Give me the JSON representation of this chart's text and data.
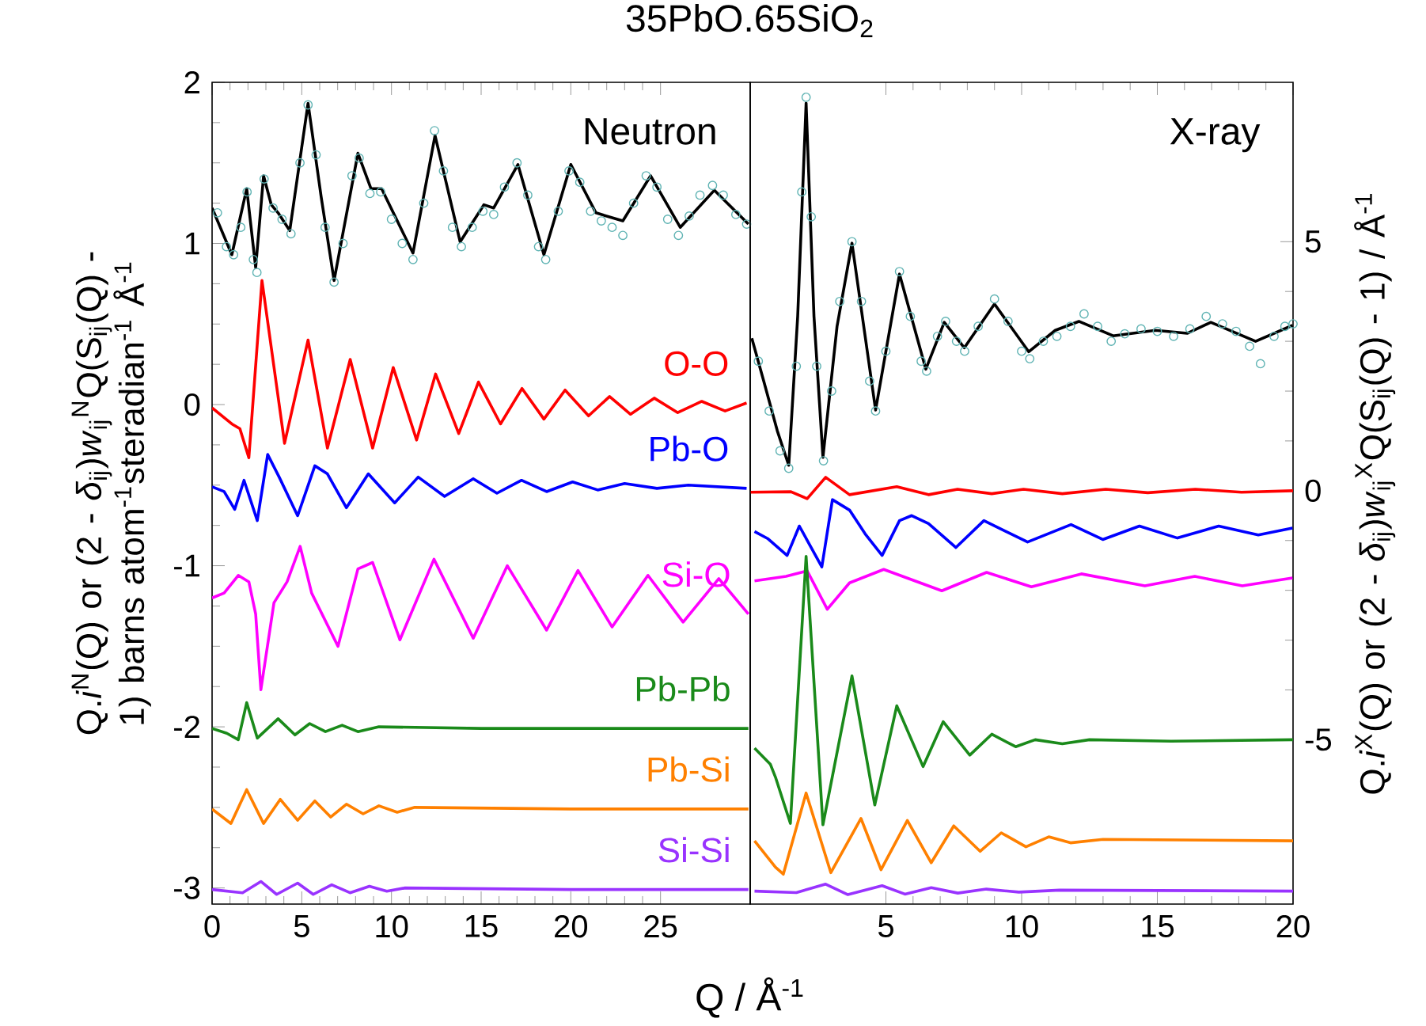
{
  "chart_data": [
    {
      "type": "line",
      "title": "35PbO.65SiO$_{2}$",
      "xlabel": "Q / Å$^{-1}$",
      "ylabel": "Q.*i*$^{N}$(Q) or (2 - *δ*$_{ij}$)*w*$_{ij}$$^{N}$Q(S$_{ij}$(Q) - 1) barns atom$^{-1}$steradian$^{-1}$ Å$^{-1}$",
      "annotations": [
        "Neutron"
      ],
      "xlim": [
        0,
        30
      ],
      "ylim": [
        -3.1,
        2
      ],
      "xticks": [
        0,
        5,
        10,
        15,
        20,
        25
      ],
      "yticks": [
        -3,
        -2,
        -1,
        0,
        1,
        2
      ],
      "series": [
        {
          "type": "scatter",
          "marker": "circle",
          "color": "#5fb3b3",
          "x": [
            0.3,
            0.8,
            1.2,
            1.6,
            1.95,
            2.3,
            2.5,
            2.9,
            3.4,
            3.9,
            4.4,
            4.9,
            5.35,
            5.8,
            6.3,
            6.8,
            7.3,
            7.8,
            8.2,
            8.8,
            9.4,
            10.0,
            10.6,
            11.2,
            11.8,
            12.4,
            12.9,
            13.4,
            13.9,
            14.5,
            15.1,
            15.7,
            16.3,
            17.0,
            17.6,
            18.2,
            18.6,
            19.3,
            19.9,
            20.5,
            21.1,
            21.7,
            22.3,
            22.9,
            23.5,
            24.2,
            24.8,
            25.4,
            26.0,
            26.6,
            27.2,
            27.9,
            28.5,
            29.2,
            29.8
          ],
          "values": [
            1.19,
            0.98,
            0.93,
            1.1,
            1.32,
            0.9,
            0.82,
            1.4,
            1.22,
            1.15,
            1.06,
            1.5,
            1.86,
            1.55,
            1.1,
            0.76,
            1.0,
            1.42,
            1.53,
            1.31,
            1.32,
            1.15,
            1.0,
            0.9,
            1.25,
            1.7,
            1.45,
            1.1,
            0.98,
            1.1,
            1.2,
            1.18,
            1.35,
            1.5,
            1.3,
            0.98,
            0.9,
            1.2,
            1.45,
            1.38,
            1.2,
            1.14,
            1.1,
            1.05,
            1.25,
            1.42,
            1.35,
            1.15,
            1.05,
            1.17,
            1.3,
            1.36,
            1.3,
            1.18,
            1.12
          ]
        },
        {
          "type": "line",
          "color": "#000000",
          "x": [
            0,
            1.1,
            1.93,
            2.43,
            2.87,
            3.3,
            3.68,
            4.33,
            5.35,
            6.08,
            6.8,
            8.13,
            8.86,
            9.45,
            11.2,
            12.43,
            13.83,
            15.15,
            15.7,
            17.05,
            18.5,
            20.0,
            21.4,
            22.9,
            24.45,
            26.1,
            28.0,
            29.9
          ],
          "values": [
            1.22,
            0.93,
            1.34,
            0.85,
            1.42,
            1.24,
            1.19,
            1.08,
            1.87,
            1.29,
            0.77,
            1.56,
            1.34,
            1.34,
            0.94,
            1.67,
            1.01,
            1.24,
            1.22,
            1.49,
            0.93,
            1.49,
            1.19,
            1.14,
            1.42,
            1.1,
            1.33,
            1.12
          ]
        },
        {
          "type": "line",
          "name": "O-O",
          "color": "#ff0000",
          "x": [
            0,
            1.1,
            1.55,
            2.05,
            2.78,
            4.04,
            5.35,
            6.43,
            7.7,
            8.95,
            10.1,
            11.4,
            12.46,
            13.75,
            14.85,
            16.08,
            17.28,
            18.5,
            19.68,
            20.99,
            22.16,
            23.33,
            24.65,
            25.96,
            27.3,
            28.6,
            29.8
          ],
          "values": [
            -0.02,
            -0.12,
            -0.15,
            -0.33,
            0.77,
            -0.24,
            0.4,
            -0.27,
            0.28,
            -0.27,
            0.23,
            -0.22,
            0.19,
            -0.18,
            0.14,
            -0.12,
            0.1,
            -0.09,
            0.09,
            -0.07,
            0.05,
            -0.06,
            0.04,
            -0.05,
            0.02,
            -0.04,
            0.01
          ]
        },
        {
          "type": "line",
          "name": "Pb-O",
          "color": "#0000ff",
          "x": [
            0,
            0.67,
            1.26,
            1.78,
            2.52,
            3.1,
            3.74,
            4.77,
            5.73,
            6.43,
            7.49,
            8.71,
            10.18,
            11.49,
            12.96,
            14.56,
            15.88,
            17.25,
            18.65,
            20.1,
            21.5,
            23.0,
            24.8,
            26.55,
            29.8
          ],
          "values": [
            -0.51,
            -0.54,
            -0.65,
            -0.47,
            -0.72,
            -0.31,
            -0.45,
            -0.69,
            -0.38,
            -0.43,
            -0.64,
            -0.43,
            -0.61,
            -0.45,
            -0.57,
            -0.46,
            -0.55,
            -0.47,
            -0.54,
            -0.48,
            -0.53,
            -0.49,
            -0.52,
            -0.5,
            -0.52
          ]
        },
        {
          "type": "line",
          "name": "Si-O",
          "color": "#ff00ff",
          "x": [
            0,
            0.67,
            1.46,
            2.05,
            2.43,
            2.72,
            3.45,
            4.18,
            4.91,
            5.55,
            7.02,
            8.13,
            8.95,
            10.47,
            12.37,
            14.56,
            16.46,
            18.65,
            20.4,
            22.3,
            24.3,
            26.26,
            28.25,
            29.9
          ],
          "values": [
            -1.2,
            -1.17,
            -1.06,
            -1.1,
            -1.3,
            -1.77,
            -1.23,
            -1.1,
            -0.88,
            -1.17,
            -1.5,
            -1.02,
            -0.98,
            -1.46,
            -0.96,
            -1.45,
            -1.0,
            -1.4,
            -1.03,
            -1.38,
            -1.06,
            -1.35,
            -1.08,
            -1.3
          ]
        },
        {
          "type": "line",
          "name": "Pb-Pb",
          "color": "#1a8a1a",
          "x": [
            0,
            0.82,
            1.46,
            1.93,
            2.52,
            3.68,
            4.62,
            5.44,
            6.32,
            7.25,
            8.13,
            9.3,
            15,
            29.9
          ],
          "values": [
            -2.01,
            -2.04,
            -2.08,
            -1.85,
            -2.07,
            -1.95,
            -2.05,
            -1.98,
            -2.03,
            -1.99,
            -2.03,
            -2.0,
            -2.01,
            -2.01
          ]
        },
        {
          "type": "line",
          "name": "Pb-Si",
          "color": "#ff8000",
          "x": [
            0,
            1.05,
            1.93,
            2.87,
            3.8,
            4.77,
            5.73,
            6.61,
            7.49,
            8.42,
            9.3,
            10.32,
            11.3,
            20,
            29.9
          ],
          "values": [
            -2.51,
            -2.6,
            -2.39,
            -2.6,
            -2.45,
            -2.58,
            -2.46,
            -2.56,
            -2.48,
            -2.54,
            -2.49,
            -2.53,
            -2.5,
            -2.51,
            -2.51
          ]
        },
        {
          "type": "line",
          "name": "Si-Si",
          "color": "#9933ff",
          "x": [
            0,
            1.7,
            2.72,
            3.6,
            4.77,
            5.64,
            6.67,
            7.69,
            8.77,
            9.74,
            10.76,
            20,
            29.9
          ],
          "values": [
            -3.01,
            -3.03,
            -2.96,
            -3.04,
            -2.97,
            -3.04,
            -2.98,
            -3.03,
            -2.99,
            -3.02,
            -3.0,
            -3.01,
            -3.01
          ]
        }
      ]
    },
    {
      "type": "line",
      "ylabel": "Q.*i*$^{X}$(Q) or (2 - *δ*$_{ij}$)*w*$_{ij}$$^{X}$Q(S$_{ij}$(Q) - 1) / Å$^{-1}$",
      "annotations": [
        "X-ray"
      ],
      "xlim": [
        0,
        20
      ],
      "ylim": [
        -8.3,
        8.2
      ],
      "xticks": [
        5,
        10,
        15,
        20
      ],
      "yticks": [
        -5,
        0,
        5
      ],
      "series": [
        {
          "type": "scatter",
          "marker": "circle",
          "color": "#5fb3b3",
          "x": [
            0.3,
            0.7,
            1.1,
            1.42,
            1.7,
            1.9,
            2.06,
            2.25,
            2.45,
            2.7,
            3.0,
            3.3,
            3.75,
            4.1,
            4.4,
            4.62,
            5.0,
            5.5,
            5.9,
            6.3,
            6.5,
            6.9,
            7.2,
            7.6,
            7.9,
            8.4,
            9.0,
            9.5,
            10.0,
            10.3,
            10.8,
            11.3,
            11.8,
            12.3,
            12.8,
            13.3,
            13.8,
            14.4,
            15.0,
            15.6,
            16.2,
            16.8,
            17.4,
            17.9,
            18.4,
            18.8,
            19.3,
            19.7,
            20.0
          ],
          "values": [
            2.6,
            1.6,
            0.8,
            0.45,
            2.5,
            6.0,
            7.9,
            5.5,
            2.5,
            0.6,
            2.0,
            3.8,
            5.0,
            3.8,
            2.2,
            1.6,
            2.8,
            4.4,
            3.5,
            2.6,
            2.4,
            3.1,
            3.4,
            3.0,
            2.8,
            3.3,
            3.85,
            3.4,
            2.8,
            2.65,
            3.0,
            3.1,
            3.3,
            3.55,
            3.3,
            3.0,
            3.15,
            3.25,
            3.2,
            3.1,
            3.25,
            3.5,
            3.35,
            3.2,
            2.9,
            2.55,
            3.1,
            3.3,
            3.35
          ]
        },
        {
          "type": "line",
          "color": "#000000",
          "x": [
            0.06,
            0.5,
            1.0,
            1.42,
            1.75,
            2.06,
            2.35,
            2.68,
            3.2,
            3.75,
            4.62,
            5.5,
            6.47,
            7.15,
            7.89,
            9.0,
            10.26,
            11.24,
            12.11,
            13.37,
            14.93,
            16.1,
            16.97,
            18.62,
            19.98
          ],
          "values": [
            3.06,
            2.2,
            1.2,
            0.51,
            3.5,
            7.78,
            3.5,
            0.67,
            3.3,
            4.97,
            1.62,
            4.35,
            2.44,
            3.38,
            2.87,
            3.75,
            2.79,
            3.22,
            3.4,
            3.11,
            3.22,
            3.16,
            3.38,
            3.0,
            3.32
          ]
        },
        {
          "type": "line",
          "color": "#ff0000",
          "x": [
            0.02,
            1.5,
            2.1,
            2.78,
            3.66,
            5.4,
            6.57,
            7.64,
            8.9,
            10.07,
            11.5,
            13.1,
            14.65,
            16.4,
            18.1,
            20
          ],
          "values": [
            -0.03,
            -0.02,
            -0.16,
            0.27,
            -0.08,
            0.08,
            -0.08,
            0.03,
            -0.06,
            0.03,
            -0.06,
            0.03,
            -0.04,
            0.03,
            -0.03,
            0
          ]
        },
        {
          "type": "line",
          "color": "#0000ff",
          "x": [
            0.16,
            0.64,
            1.36,
            1.81,
            2.64,
            3.03,
            3.66,
            4.24,
            4.86,
            5.5,
            5.95,
            6.57,
            7.58,
            8.61,
            10.22,
            11.82,
            12.99,
            14.34,
            15.74,
            17.26,
            18.72,
            19.98
          ],
          "values": [
            -0.82,
            -0.96,
            -1.3,
            -0.71,
            -1.53,
            -0.18,
            -0.39,
            -0.87,
            -1.3,
            -0.6,
            -0.5,
            -0.66,
            -1.14,
            -0.6,
            -1.03,
            -0.68,
            -0.98,
            -0.71,
            -0.95,
            -0.71,
            -0.89,
            -0.75
          ]
        },
        {
          "type": "line",
          "color": "#ff00ff",
          "x": [
            0.16,
            1.32,
            2.1,
            2.84,
            3.66,
            4.92,
            7.06,
            8.71,
            10.36,
            12.2,
            14.54,
            16.38,
            18.13,
            19.98
          ],
          "values": [
            -1.81,
            -1.72,
            -1.61,
            -2.38,
            -1.85,
            -1.58,
            -2.01,
            -1.64,
            -1.93,
            -1.67,
            -1.91,
            -1.72,
            -1.91,
            -1.75
          ]
        },
        {
          "type": "line",
          "color": "#1a8a1a",
          "x": [
            0.16,
            0.74,
            0.93,
            1.48,
            2.06,
            2.68,
            3.75,
            4.59,
            5.4,
            6.37,
            7.11,
            8.09,
            8.9,
            9.78,
            10.5,
            11.5,
            12.5,
            15.5,
            20
          ],
          "values": [
            -5.17,
            -5.49,
            -5.75,
            -6.68,
            -1.32,
            -6.71,
            -3.72,
            -6.31,
            -4.32,
            -5.54,
            -4.64,
            -5.31,
            -4.89,
            -5.14,
            -5.0,
            -5.08,
            -5.0,
            -5.03,
            -5.0
          ]
        },
        {
          "type": "line",
          "color": "#ff8000",
          "x": [
            0.16,
            0.93,
            1.22,
            2.06,
            2.97,
            4.08,
            4.82,
            5.79,
            6.67,
            7.5,
            8.47,
            9.25,
            10.16,
            11.0,
            11.8,
            13,
            20
          ],
          "values": [
            -7.03,
            -7.56,
            -7.7,
            -6.07,
            -7.67,
            -6.58,
            -7.61,
            -6.62,
            -7.47,
            -6.73,
            -7.24,
            -6.87,
            -7.15,
            -6.95,
            -7.07,
            -7.0,
            -7.03
          ]
        },
        {
          "type": "line",
          "color": "#9933ff",
          "x": [
            0.16,
            1.7,
            2.78,
            3.6,
            4.86,
            5.7,
            6.67,
            7.65,
            8.7,
            9.9,
            11.4,
            20
          ],
          "values": [
            -8.04,
            -8.07,
            -7.9,
            -8.11,
            -7.93,
            -8.1,
            -7.97,
            -8.08,
            -8.0,
            -8.06,
            -8.02,
            -8.04
          ]
        }
      ]
    }
  ]
}
